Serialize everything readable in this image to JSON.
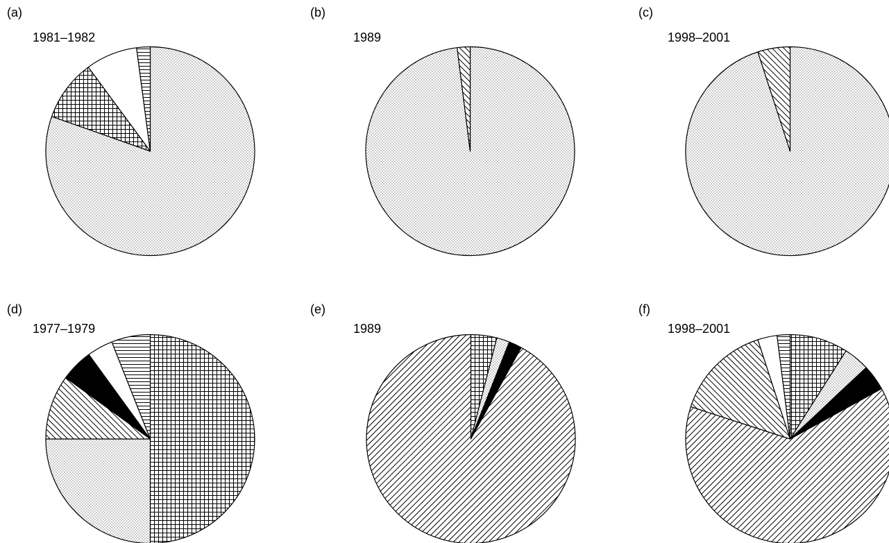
{
  "chart_data": [
    {
      "type": "pie",
      "panel_label": "(a)",
      "title": "1981–1982",
      "slices": [
        {
          "pattern": "dots",
          "value": 80.4
        },
        {
          "pattern": "crosshatch",
          "value": 9.5
        },
        {
          "pattern": "white",
          "value": 8.0
        },
        {
          "pattern": "hlines",
          "value": 2.1
        }
      ]
    },
    {
      "type": "pie",
      "panel_label": "(b)",
      "title": "1989",
      "slices": [
        {
          "pattern": "dots",
          "value": 98.0
        },
        {
          "pattern": "diag-down",
          "value": 2.0
        }
      ]
    },
    {
      "type": "pie",
      "panel_label": "(c)",
      "title": "1998–2001",
      "slices": [
        {
          "pattern": "dots",
          "value": 95.0
        },
        {
          "pattern": "diag-down",
          "value": 5.0
        }
      ]
    },
    {
      "type": "pie",
      "panel_label": "(d)",
      "title": "1977–1979",
      "slices": [
        {
          "pattern": "crosshatch",
          "value": 50.0
        },
        {
          "pattern": "dots",
          "value": 25.0
        },
        {
          "pattern": "diag-down",
          "value": 10.0
        },
        {
          "pattern": "black",
          "value": 5.0
        },
        {
          "pattern": "white",
          "value": 4.0
        },
        {
          "pattern": "hlines",
          "value": 6.0
        }
      ]
    },
    {
      "type": "pie",
      "panel_label": "(e)",
      "title": "1989",
      "slices": [
        {
          "pattern": "crosshatch",
          "value": 4.0
        },
        {
          "pattern": "dots",
          "value": 2.0
        },
        {
          "pattern": "black",
          "value": 2.0
        },
        {
          "pattern": "diag-up",
          "value": 92.0
        }
      ]
    },
    {
      "type": "pie",
      "panel_label": "(f)",
      "title": "1998–2001",
      "slices": [
        {
          "pattern": "crosshatch",
          "value": 9.0
        },
        {
          "pattern": "dots",
          "value": 4.0
        },
        {
          "pattern": "black",
          "value": 4.0
        },
        {
          "pattern": "diag-up",
          "value": 63.0
        },
        {
          "pattern": "diag-down",
          "value": 15.0
        },
        {
          "pattern": "white",
          "value": 3.0
        },
        {
          "pattern": "hlines",
          "value": 2.0
        }
      ]
    }
  ]
}
